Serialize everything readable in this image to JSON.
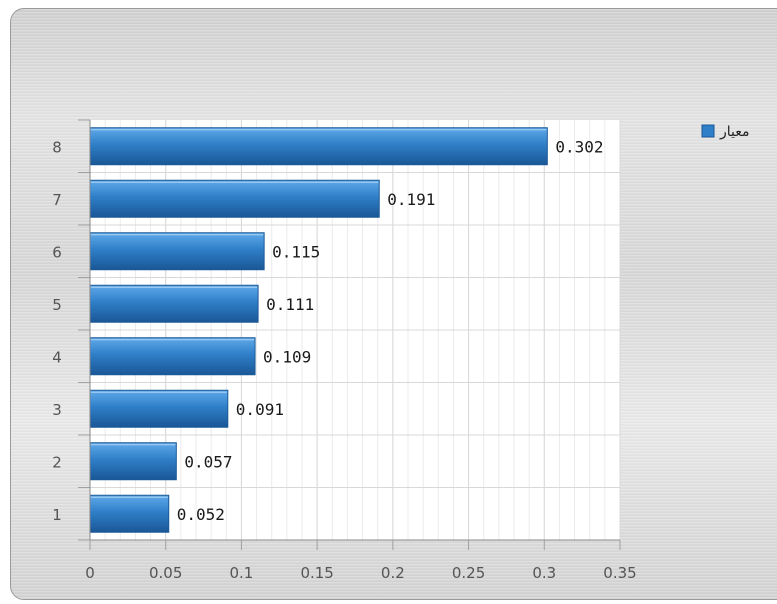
{
  "chart_data": {
    "type": "bar",
    "orientation": "horizontal",
    "categories": [
      "1",
      "2",
      "3",
      "4",
      "5",
      "6",
      "7",
      "8"
    ],
    "series": [
      {
        "name": "معیار",
        "color": "#2f7fc8",
        "values": [
          0.052,
          0.057,
          0.091,
          0.109,
          0.111,
          0.115,
          0.191,
          0.302
        ]
      }
    ],
    "data_labels": [
      "0.052",
      "0.057",
      "0.091",
      "0.109",
      "0.111",
      "0.115",
      "0.191",
      "0.302"
    ],
    "x_ticks": [
      "0",
      "0.05",
      "0.1",
      "0.15",
      "0.2",
      "0.25",
      "0.3",
      "0.35"
    ],
    "xlim": [
      0,
      0.35
    ],
    "grid": true,
    "legend_position": "top-right",
    "title": "",
    "xlabel": "",
    "ylabel": ""
  }
}
